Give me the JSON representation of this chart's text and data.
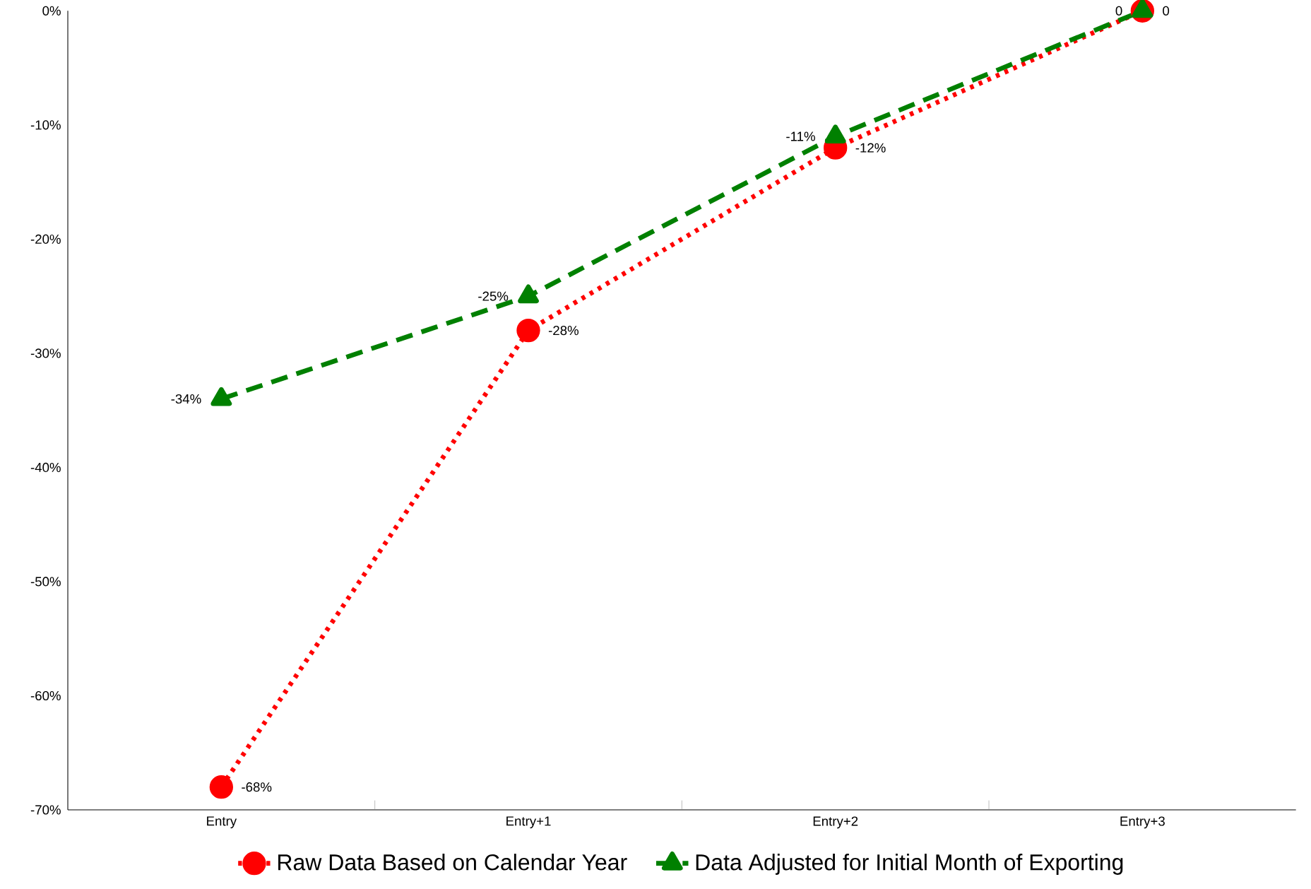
{
  "chart_data": {
    "type": "line",
    "categories": [
      "Entry",
      "Entry+1",
      "Entry+2",
      "Entry+3"
    ],
    "series": [
      {
        "name": "Raw Data Based on Calendar Year",
        "color": "#ff0000",
        "values": [
          -68,
          -28,
          -12,
          0
        ],
        "value_labels": [
          "-68%",
          "-28%",
          "-12%",
          "0"
        ],
        "marker": "circle",
        "line_style": "dotted"
      },
      {
        "name": "Data Adjusted for Initial Month of Exporting",
        "color": "#008000",
        "values": [
          -34,
          -25,
          -11,
          0
        ],
        "value_labels": [
          "-34%",
          "-25%",
          "-11%",
          "0"
        ],
        "marker": "triangle",
        "line_style": "dashed"
      }
    ],
    "ylim": [
      -70,
      0
    ],
    "yticks": [
      {
        "value": -70,
        "label": "-70%"
      },
      {
        "value": -60,
        "label": "-60%"
      },
      {
        "value": -50,
        "label": "-50%"
      },
      {
        "value": -40,
        "label": "-40%"
      },
      {
        "value": -30,
        "label": "-30%"
      },
      {
        "value": -20,
        "label": "-20%"
      },
      {
        "value": -10,
        "label": "-10%"
      },
      {
        "value": 0,
        "label": "0%"
      }
    ],
    "legend": "bottom"
  }
}
